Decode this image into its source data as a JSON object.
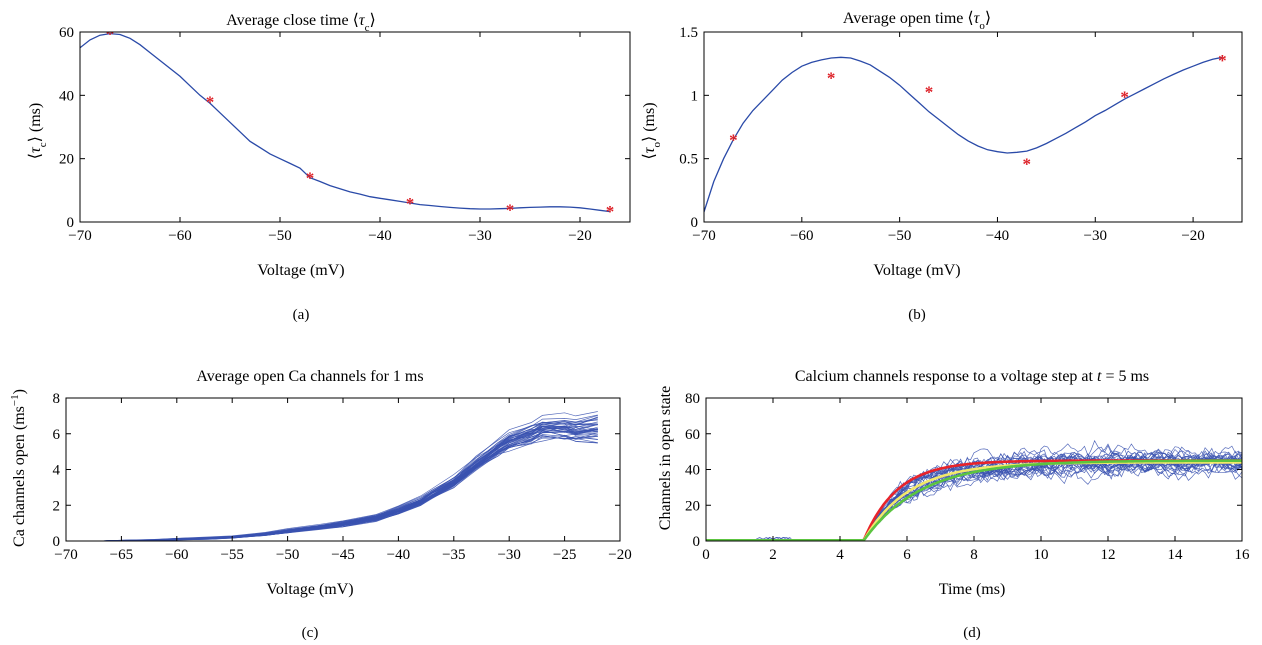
{
  "colors": {
    "curve": "#2a4aa8",
    "marker": "#dd1f26",
    "trace": "#3a52b0",
    "fit_red": "#e8232a",
    "fit_yellow": "#f2e86a",
    "fit_green": "#5cc440"
  },
  "chart_data": [
    {
      "id": "a",
      "panel_label": "(a)",
      "type": "line",
      "title": "Average close time ⟨τc⟩",
      "xlabel": "Voltage (mV)",
      "ylabel": "⟨τc⟩ (ms)",
      "xlim": [
        -70,
        -15
      ],
      "ylim": [
        0,
        60
      ],
      "xticks": [
        -70,
        -60,
        -50,
        -40,
        -30,
        -20
      ],
      "yticks": [
        0,
        20,
        40,
        60
      ],
      "xtick_labels": [
        "−70",
        "−60",
        "−50",
        "−40",
        "−30",
        "−20"
      ],
      "ytick_labels": [
        "0",
        "20",
        "40",
        "60"
      ],
      "series": [
        {
          "kind": "curve",
          "x": [
            -70,
            -69,
            -68,
            -67,
            -66,
            -65,
            -64,
            -63,
            -62,
            -61,
            -60,
            -59,
            -58,
            -57,
            -56,
            -55,
            -54,
            -53,
            -52,
            -51,
            -50,
            -49,
            -48,
            -47,
            -46,
            -45,
            -44,
            -43,
            -42,
            -41,
            -40,
            -39,
            -38,
            -37,
            -36,
            -35,
            -34,
            -33,
            -32,
            -31,
            -30,
            -29,
            -28,
            -27,
            -26,
            -25,
            -24,
            -23,
            -22,
            -21,
            -20,
            -19,
            -18,
            -17
          ],
          "y": [
            55,
            57.5,
            59,
            59.5,
            59.2,
            58,
            56,
            53.5,
            51,
            48.5,
            46,
            43,
            40,
            37.5,
            34.5,
            31.5,
            28.5,
            25.5,
            23.5,
            21.5,
            20,
            18.5,
            17,
            14,
            12.8,
            11.5,
            10.5,
            9.5,
            8.8,
            8,
            7.5,
            7,
            6.5,
            6,
            5.5,
            5.2,
            4.9,
            4.6,
            4.4,
            4.2,
            4.1,
            4.1,
            4.2,
            4.3,
            4.5,
            4.6,
            4.7,
            4.8,
            4.8,
            4.7,
            4.5,
            4.1,
            3.7,
            3.3
          ]
        },
        {
          "kind": "markers",
          "x": [
            -67,
            -57,
            -47,
            -37,
            -27,
            -17
          ],
          "y": [
            59.5,
            38,
            14,
            6,
            4,
            3.5
          ]
        }
      ]
    },
    {
      "id": "b",
      "panel_label": "(b)",
      "type": "line",
      "title": "Average open time ⟨τo⟩",
      "xlabel": "Voltage (mV)",
      "ylabel": "⟨τo⟩ (ms)",
      "xlim": [
        -70,
        -15
      ],
      "ylim": [
        0,
        1.5
      ],
      "xticks": [
        -70,
        -60,
        -50,
        -40,
        -30,
        -20
      ],
      "yticks": [
        0,
        0.5,
        1,
        1.5
      ],
      "xtick_labels": [
        "−70",
        "−60",
        "−50",
        "−40",
        "−30",
        "−20"
      ],
      "ytick_labels": [
        "0",
        "0.5",
        "1",
        "1.5"
      ],
      "series": [
        {
          "kind": "curve",
          "x": [
            -70,
            -69,
            -68,
            -67,
            -66,
            -65,
            -64,
            -63,
            -62,
            -61,
            -60,
            -59,
            -58,
            -57,
            -56,
            -55,
            -54,
            -53,
            -52,
            -51,
            -50,
            -49,
            -48,
            -47,
            -46,
            -45,
            -44,
            -43,
            -42,
            -41,
            -40,
            -39,
            -38,
            -37,
            -36,
            -35,
            -34,
            -33,
            -32,
            -31,
            -30,
            -29,
            -28,
            -27,
            -26,
            -25,
            -24,
            -23,
            -22,
            -21,
            -20,
            -19,
            -18,
            -17
          ],
          "y": [
            0.08,
            0.32,
            0.5,
            0.65,
            0.78,
            0.88,
            0.96,
            1.04,
            1.12,
            1.18,
            1.23,
            1.26,
            1.28,
            1.295,
            1.3,
            1.295,
            1.27,
            1.24,
            1.19,
            1.14,
            1.08,
            1.01,
            0.94,
            0.87,
            0.81,
            0.75,
            0.69,
            0.64,
            0.6,
            0.57,
            0.555,
            0.545,
            0.55,
            0.56,
            0.585,
            0.62,
            0.66,
            0.7,
            0.745,
            0.79,
            0.84,
            0.88,
            0.925,
            0.97,
            1.01,
            1.05,
            1.09,
            1.13,
            1.165,
            1.2,
            1.23,
            1.26,
            1.285,
            1.3
          ]
        },
        {
          "kind": "markers",
          "x": [
            -67,
            -57,
            -47,
            -37,
            -27,
            -17
          ],
          "y": [
            0.65,
            1.14,
            1.03,
            0.46,
            0.99,
            1.28
          ]
        }
      ]
    },
    {
      "id": "c",
      "panel_label": "(c)",
      "type": "line",
      "title": "Average open Ca channels for 1 ms",
      "xlabel": "Voltage (mV)",
      "ylabel": "Ca channels open (ms⁻¹)",
      "xlim": [
        -70,
        -20
      ],
      "ylim": [
        0,
        8
      ],
      "xticks": [
        -70,
        -65,
        -60,
        -55,
        -50,
        -45,
        -40,
        -35,
        -30,
        -25,
        -20
      ],
      "yticks": [
        0,
        2,
        4,
        6,
        8
      ],
      "xtick_labels": [
        "−70",
        "−65",
        "−60",
        "−55",
        "−50",
        "−45",
        "−40",
        "−35",
        "−30",
        "−25",
        "−20"
      ],
      "ytick_labels": [
        "0",
        "2",
        "4",
        "6",
        "8"
      ],
      "series": [
        {
          "kind": "band_mean",
          "x": [
            -70,
            -67,
            -65,
            -62,
            -60,
            -57,
            -55,
            -52,
            -50,
            -47,
            -45,
            -42,
            -40,
            -38,
            -37,
            -35,
            -33,
            -31,
            -30,
            -28,
            -27,
            -25,
            -24,
            -22
          ],
          "y": [
            0,
            0,
            0.02,
            0.05,
            0.1,
            0.15,
            0.22,
            0.38,
            0.55,
            0.78,
            0.95,
            1.3,
            1.7,
            2.2,
            2.6,
            3.3,
            4.3,
            5.2,
            5.6,
            6.0,
            6.3,
            6.3,
            6.2,
            6.3
          ],
          "spread": [
            0,
            0,
            0.02,
            0.03,
            0.04,
            0.05,
            0.06,
            0.08,
            0.1,
            0.12,
            0.14,
            0.17,
            0.2,
            0.22,
            0.25,
            0.3,
            0.35,
            0.4,
            0.45,
            0.5,
            0.55,
            0.6,
            0.65,
            0.75
          ],
          "n_traces": 40
        }
      ]
    },
    {
      "id": "d",
      "panel_label": "(d)",
      "type": "line",
      "title": "Calcium channels response to a voltage step at t = 5 ms",
      "xlabel": "Time (ms)",
      "ylabel": "Channels in open state",
      "xlim": [
        0,
        16
      ],
      "ylim": [
        0,
        80
      ],
      "xticks": [
        0,
        2,
        4,
        6,
        8,
        10,
        12,
        14,
        16
      ],
      "yticks": [
        0,
        20,
        40,
        60,
        80
      ],
      "xtick_labels": [
        "0",
        "2",
        "4",
        "6",
        "8",
        "10",
        "12",
        "14",
        "16"
      ],
      "ytick_labels": [
        "0",
        "20",
        "40",
        "60",
        "80"
      ],
      "series": [
        {
          "kind": "noisy_traces",
          "step_time": 4.7,
          "plateau": 44,
          "tau": 1.2,
          "noise": 8,
          "n_traces": 28
        },
        {
          "kind": "fit",
          "color_key": "fit_red",
          "step_time": 4.7,
          "plateau": 45,
          "tau": 1.0
        },
        {
          "kind": "fit",
          "color_key": "fit_yellow",
          "step_time": 4.7,
          "plateau": 44,
          "tau": 1.35
        },
        {
          "kind": "fit",
          "color_key": "fit_green",
          "step_time": 4.7,
          "plateau": 45,
          "tau": 1.7
        }
      ]
    }
  ]
}
